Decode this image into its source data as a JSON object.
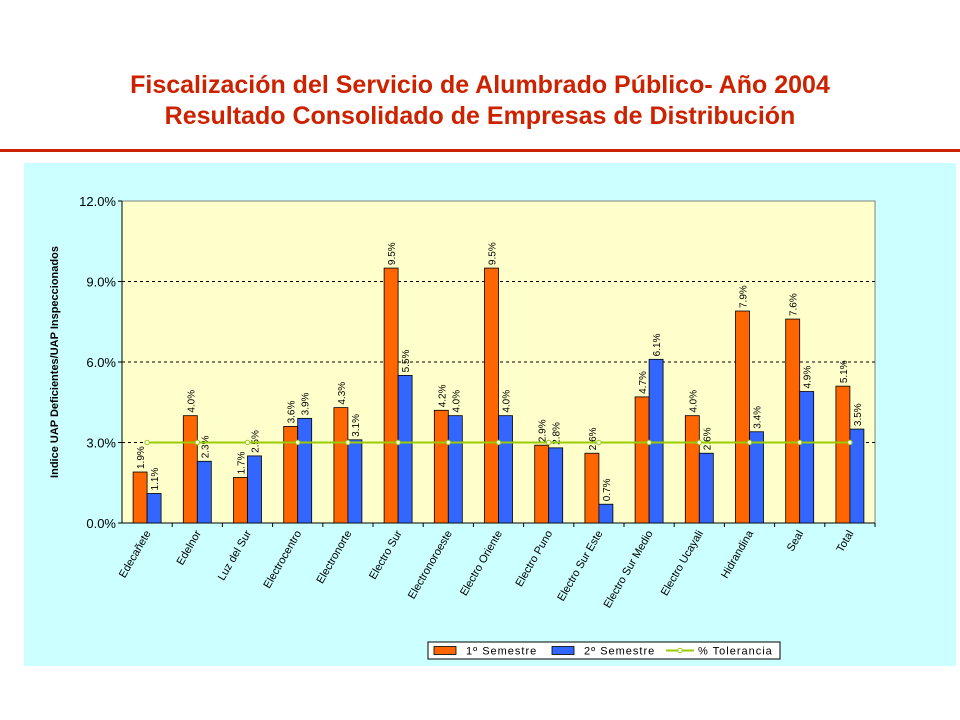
{
  "header": {
    "title_line1": "Fiscalización del Servicio de Alumbrado Público- Año 2004",
    "title_line2": "Resultado Consolidado de Empresas de Distribución"
  },
  "chart_data": {
    "type": "bar",
    "title": "",
    "ylabel": "Indice UAP Deficientes/UAP Inspeccionados",
    "xlabel": "",
    "ylim": [
      0,
      0.12
    ],
    "yticks": [
      0.0,
      0.03,
      0.06,
      0.09,
      0.12
    ],
    "ytick_labels": [
      "0.0%",
      "3.0%",
      "6.0%",
      "9.0%",
      "12.0%"
    ],
    "grid": true,
    "legend_position": "bottom-right",
    "categories": [
      "Edecañete",
      "Edelnor",
      "Luz del Sur",
      "Electrocentro",
      "Electronorte",
      "Electro Sur",
      "Electronoroeste",
      "Electro Oriente",
      "Electro Puno",
      "Electro Sur Este",
      "Electro Sur Medio",
      "Electro Ucayali",
      "Hidrandina",
      "Seal",
      "Total"
    ],
    "series": [
      {
        "name": "1º Semestre",
        "kind": "bar",
        "color": "#ff6600",
        "values": [
          0.019,
          0.04,
          0.017,
          0.036,
          0.043,
          0.095,
          0.042,
          0.095,
          0.029,
          0.026,
          0.047,
          0.04,
          0.079,
          0.076,
          0.051
        ],
        "labels": [
          "1.9%",
          "4.0%",
          "1.7%",
          "3.6%",
          "4.3%",
          "9.5%",
          "4.2%",
          "9.5%",
          "2.9%",
          "2.6%",
          "4.7%",
          "4.0%",
          "7.9%",
          "7.6%",
          "5.1%"
        ]
      },
      {
        "name": "2º Semestre",
        "kind": "bar",
        "color": "#3366ff",
        "values": [
          0.011,
          0.023,
          0.025,
          0.039,
          0.031,
          0.055,
          0.04,
          0.04,
          0.028,
          0.007,
          0.061,
          0.026,
          0.034,
          0.049,
          0.035
        ],
        "labels": [
          "1.1%",
          "2.3%",
          "2.5%",
          "3.9%",
          "3.1%",
          "5.5%",
          "4.0%",
          "4.0%",
          "2.8%",
          "0.7%",
          "6.1%",
          "2.6%",
          "3.4%",
          "4.9%",
          "3.5%"
        ]
      },
      {
        "name": "% Tolerancia",
        "kind": "line",
        "color": "#99cc00",
        "values": [
          0.03,
          0.03,
          0.03,
          0.03,
          0.03,
          0.03,
          0.03,
          0.03,
          0.03,
          0.03,
          0.03,
          0.03,
          0.03,
          0.03,
          0.03
        ]
      }
    ]
  }
}
